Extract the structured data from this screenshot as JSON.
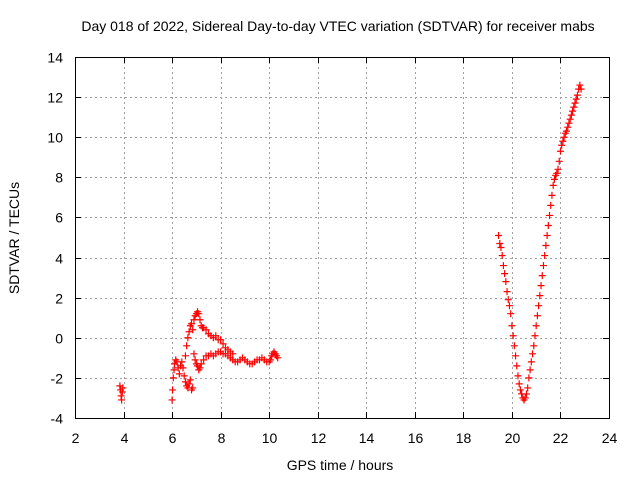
{
  "chart_data": {
    "type": "scatter",
    "title": "Day 018 of 2022, Sidereal Day-to-day VTEC variation (SDTVAR) for receiver mabs",
    "xlabel": "GPS time / hours",
    "ylabel": "SDTVAR / TECUs",
    "xlim": [
      2,
      24
    ],
    "ylim": [
      -4,
      14
    ],
    "xticks": [
      "2",
      "4",
      "6",
      "8",
      "10",
      "12",
      "14",
      "16",
      "18",
      "20",
      "22",
      "24"
    ],
    "yticks": [
      "-4",
      "-2",
      "0",
      "2",
      "4",
      "6",
      "8",
      "10",
      "12",
      "14"
    ],
    "grid": true,
    "marker": "+",
    "series": [
      {
        "name": "SDTVAR",
        "color": "#ff0000",
        "x": [
          3.85,
          3.88,
          3.9,
          3.92,
          3.95,
          3.97,
          6.0,
          6.02,
          6.05,
          6.08,
          6.1,
          6.15,
          6.2,
          6.25,
          6.3,
          6.35,
          6.4,
          6.45,
          6.5,
          6.55,
          6.6,
          6.65,
          6.7,
          6.75,
          6.8,
          6.85,
          6.55,
          6.6,
          6.65,
          6.7,
          6.75,
          6.8,
          6.85,
          6.9,
          6.95,
          7.0,
          7.05,
          7.1,
          7.15,
          7.2,
          7.25,
          7.3,
          7.4,
          7.5,
          7.6,
          7.7,
          7.8,
          7.9,
          8.0,
          8.1,
          8.2,
          8.3,
          8.4,
          8.5,
          6.9,
          6.95,
          7.0,
          7.05,
          7.1,
          7.15,
          7.2,
          7.3,
          7.4,
          7.5,
          7.6,
          7.7,
          7.8,
          7.9,
          8.0,
          8.1,
          8.2,
          8.3,
          8.4,
          8.5,
          8.6,
          8.7,
          8.8,
          8.9,
          9.0,
          9.1,
          9.2,
          9.3,
          9.4,
          9.5,
          9.6,
          9.7,
          9.8,
          9.9,
          10.0,
          10.05,
          10.1,
          10.15,
          10.2,
          10.25,
          10.3,
          10.35,
          19.45,
          19.5,
          19.55,
          19.6,
          19.65,
          19.7,
          19.75,
          19.8,
          19.85,
          19.9,
          19.95,
          20.0,
          20.05,
          20.1,
          20.15,
          20.2,
          20.25,
          20.3,
          20.35,
          20.4,
          20.45,
          20.5,
          20.55,
          20.6,
          20.65,
          20.7,
          20.75,
          20.8,
          20.85,
          20.9,
          20.95,
          21.0,
          21.05,
          21.1,
          21.15,
          21.2,
          21.25,
          21.3,
          21.35,
          21.4,
          21.45,
          21.5,
          21.55,
          21.6,
          21.65,
          21.7,
          21.75,
          21.8,
          21.85,
          21.9,
          21.95,
          22.0,
          22.05,
          22.1,
          22.15,
          22.2,
          22.25,
          22.3,
          22.35,
          22.4,
          22.45,
          22.5,
          22.55,
          22.6,
          22.65,
          22.7,
          22.75,
          22.8,
          22.85
        ],
        "y": [
          -2.4,
          -2.6,
          -2.9,
          -3.1,
          -2.7,
          -2.5,
          -3.1,
          -2.6,
          -2.0,
          -1.6,
          -1.3,
          -1.1,
          -1.2,
          -1.5,
          -1.8,
          -1.4,
          -1.2,
          -1.5,
          -1.9,
          -2.2,
          -2.4,
          -2.5,
          -2.3,
          -2.1,
          -2.6,
          -2.5,
          -0.9,
          -0.4,
          0.0,
          0.3,
          0.6,
          0.7,
          0.4,
          0.9,
          1.1,
          1.2,
          1.3,
          1.2,
          0.9,
          0.6,
          0.5,
          0.5,
          0.4,
          0.2,
          0.1,
          0.0,
          0.1,
          -0.1,
          -0.1,
          -0.3,
          -0.5,
          -0.6,
          -0.7,
          -0.8,
          -0.8,
          -1.1,
          -1.3,
          -1.4,
          -1.6,
          -1.5,
          -1.3,
          -1.1,
          -0.9,
          -0.9,
          -0.8,
          -0.9,
          -0.8,
          -0.7,
          -0.7,
          -0.8,
          -0.8,
          -0.9,
          -1.0,
          -1.1,
          -1.2,
          -1.2,
          -1.1,
          -1.0,
          -1.1,
          -1.2,
          -1.3,
          -1.3,
          -1.2,
          -1.1,
          -1.1,
          -1.0,
          -1.1,
          -1.2,
          -1.2,
          -1.1,
          -0.9,
          -0.8,
          -0.7,
          -0.8,
          -0.9,
          -1.0,
          5.1,
          4.7,
          4.5,
          4.1,
          3.6,
          3.2,
          2.8,
          2.3,
          1.9,
          1.6,
          1.2,
          0.6,
          0.1,
          -0.4,
          -0.9,
          -1.4,
          -1.9,
          -2.3,
          -2.6,
          -2.8,
          -3.0,
          -3.1,
          -3.0,
          -2.8,
          -2.5,
          -2.0,
          -1.6,
          -1.2,
          -0.8,
          -0.4,
          0.1,
          0.6,
          1.1,
          1.6,
          2.1,
          2.6,
          3.1,
          3.6,
          4.1,
          4.6,
          5.1,
          5.6,
          6.1,
          6.6,
          7.1,
          7.6,
          7.9,
          8.1,
          8.2,
          8.4,
          8.8,
          9.3,
          9.6,
          9.8,
          10.0,
          10.2,
          10.3,
          10.5,
          10.7,
          10.9,
          11.1,
          11.3,
          11.5,
          11.7,
          11.9,
          12.1,
          12.4,
          12.6,
          12.4
        ]
      }
    ]
  }
}
